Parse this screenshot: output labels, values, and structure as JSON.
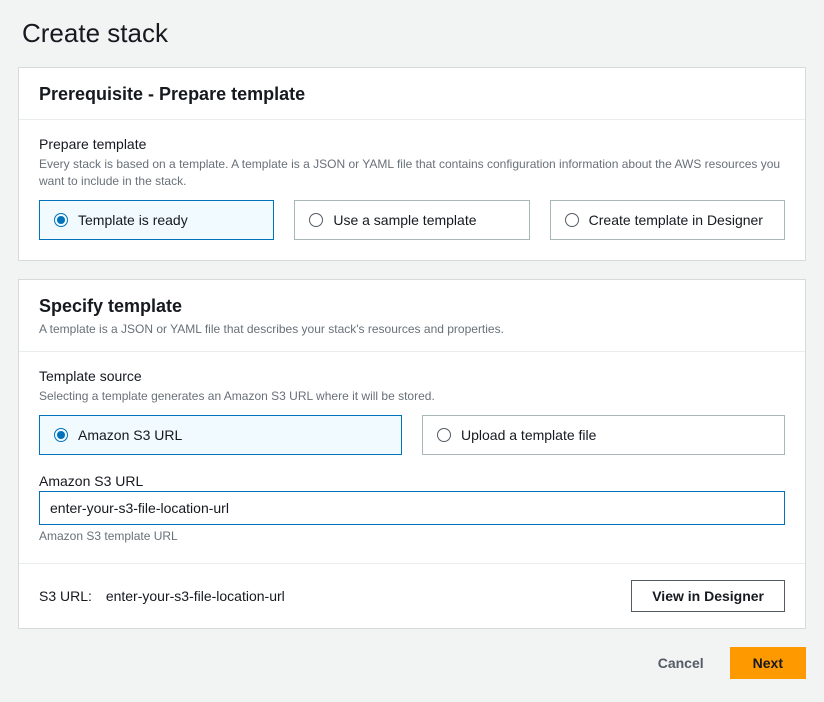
{
  "page": {
    "title": "Create stack"
  },
  "prerequisite": {
    "heading": "Prerequisite - Prepare template",
    "section_label": "Prepare template",
    "section_desc": "Every stack is based on a template. A template is a JSON or YAML file that contains configuration information about the AWS resources you want to include in the stack.",
    "options": {
      "ready": "Template is ready",
      "sample": "Use a sample template",
      "designer": "Create template in Designer"
    }
  },
  "specify": {
    "heading": "Specify template",
    "subtitle": "A template is a JSON or YAML file that describes your stack's resources and properties.",
    "source_label": "Template source",
    "source_desc": "Selecting a template generates an Amazon S3 URL where it will be stored.",
    "options": {
      "s3": "Amazon S3 URL",
      "upload": "Upload a template file"
    },
    "url_label": "Amazon S3 URL",
    "url_value": "enter-your-s3-file-location-url",
    "url_helper": "Amazon S3 template URL",
    "footer_label": "S3 URL:",
    "footer_value": "enter-your-s3-file-location-url",
    "view_designer": "View in Designer"
  },
  "actions": {
    "cancel": "Cancel",
    "next": "Next"
  }
}
